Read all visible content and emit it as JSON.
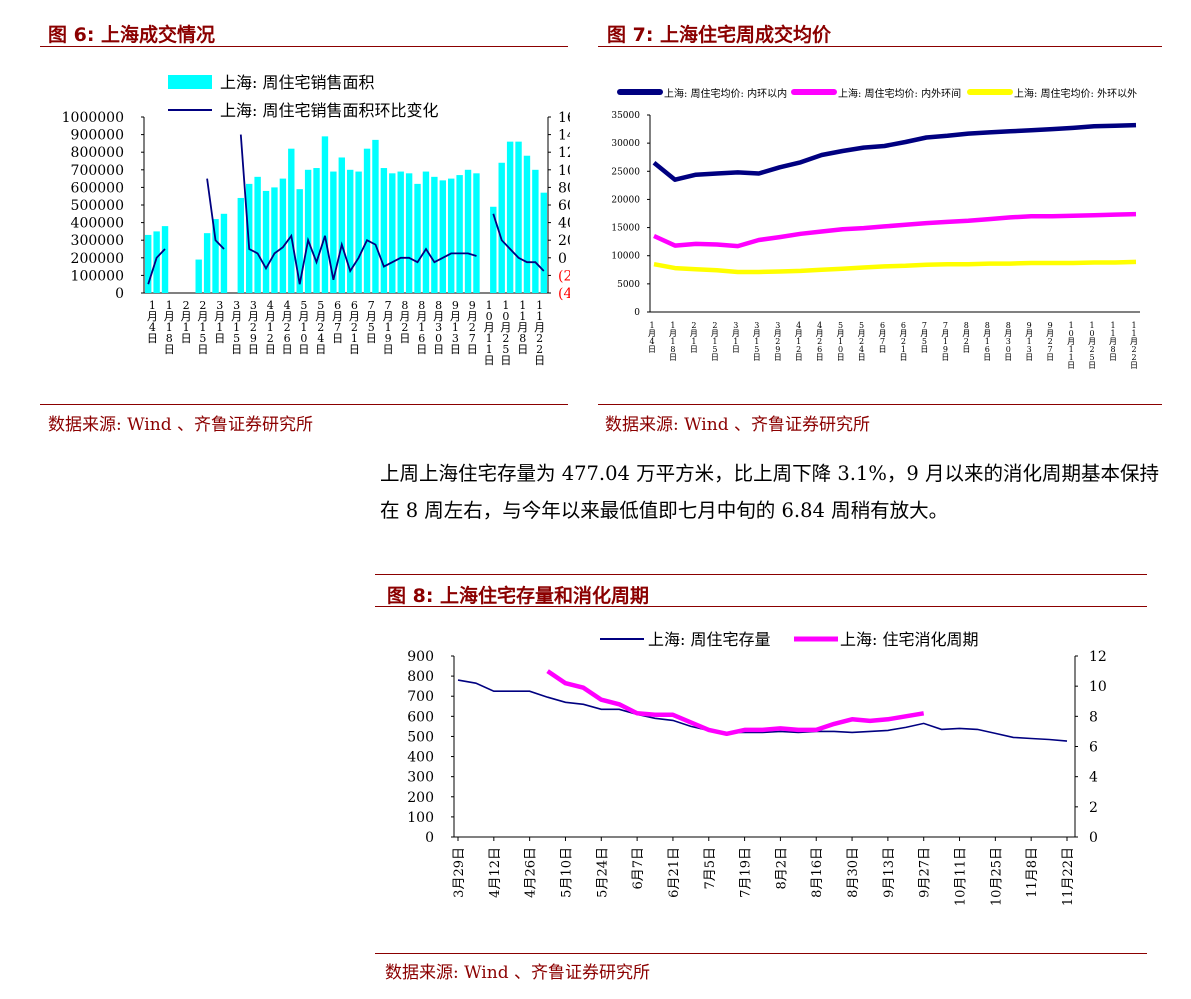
{
  "fig6": {
    "title": "图 6: 上海成交情况",
    "source": "数据来源: Wind 、齐鲁证券研究所",
    "chart_data": {
      "type": "bar",
      "legend": [
        "上海: 周住宅销售面积",
        "上海: 周住宅销售面积环比变化"
      ],
      "x_labels": [
        "1月4日",
        "1月18日",
        "2月1日",
        "2月15日",
        "3月1日",
        "3月15日",
        "3月29日",
        "4月12日",
        "4月26日",
        "5月10日",
        "5月24日",
        "6月7日",
        "6月21日",
        "7月5日",
        "7月19日",
        "8月2日",
        "8月16日",
        "8月30日",
        "9月13日",
        "9月27日",
        "10月11日",
        "10月25日",
        "11月8日",
        "11月22日"
      ],
      "y_left_ticks": [
        "1000000",
        "900000",
        "800000",
        "700000",
        "600000",
        "500000",
        "400000",
        "300000",
        "200000",
        "100000",
        "0"
      ],
      "y_right_ticks": [
        "160",
        "140",
        "120",
        "100",
        "80",
        "60",
        "40",
        "20",
        "0",
        "(20)",
        "(40)"
      ],
      "ylim_left": [
        0,
        1000000
      ],
      "ylim_right": [
        -40,
        160
      ],
      "series": [
        {
          "name": "上海: 周住宅销售面积",
          "kind": "bar",
          "values": [
            330000,
            350000,
            380000,
            null,
            null,
            null,
            190000,
            340000,
            420000,
            450000,
            null,
            540000,
            620000,
            660000,
            580000,
            600000,
            650000,
            820000,
            590000,
            700000,
            710000,
            890000,
            690000,
            770000,
            700000,
            690000,
            820000,
            870000,
            710000,
            680000,
            690000,
            680000,
            620000,
            690000,
            660000,
            640000,
            650000,
            670000,
            700000,
            680000,
            null,
            490000,
            740000,
            860000,
            860000,
            780000,
            700000,
            570000
          ]
        },
        {
          "name": "上海: 周住宅销售面积环比变化",
          "kind": "line",
          "values": [
            -30,
            0,
            10,
            null,
            null,
            null,
            null,
            90,
            20,
            10,
            null,
            140,
            10,
            5,
            -12,
            5,
            12,
            25,
            -30,
            20,
            -5,
            25,
            -25,
            15,
            -15,
            0,
            20,
            15,
            -10,
            -5,
            0,
            0,
            -5,
            10,
            -5,
            0,
            5,
            5,
            5,
            2,
            null,
            50,
            20,
            10,
            0,
            -5,
            -5,
            -15
          ]
        }
      ]
    }
  },
  "fig7": {
    "title": "图 7: 上海住宅周成交均价",
    "source": "数据来源: Wind 、齐鲁证券研究所",
    "chart_data": {
      "type": "line",
      "legend": [
        "上海: 周住宅均价: 内环以内",
        "上海: 周住宅均价: 内外环间",
        "上海: 周住宅均价: 外环以外"
      ],
      "x_labels": [
        "1月4日",
        "1月18日",
        "2月1日",
        "2月15日",
        "3月1日",
        "3月15日",
        "3月29日",
        "4月12日",
        "4月26日",
        "5月10日",
        "5月24日",
        "6月7日",
        "6月21日",
        "7月5日",
        "7月19日",
        "8月2日",
        "8月16日",
        "8月30日",
        "9月13日",
        "9月27日",
        "10月11日",
        "10月25日",
        "11月8日",
        "11月22日"
      ],
      "y_ticks": [
        "35000",
        "30000",
        "25000",
        "20000",
        "15000",
        "10000",
        "5000",
        "0"
      ],
      "ylim": [
        0,
        35000
      ],
      "colors": [
        "#000080",
        "#ff00ff",
        "#ffff00"
      ],
      "series": [
        {
          "name": "上海: 周住宅均价: 内环以内",
          "values": [
            26500,
            23500,
            24400,
            24600,
            24800,
            24600,
            25700,
            26600,
            27900,
            28600,
            29200,
            29500,
            30200,
            31000,
            31300,
            31700,
            31900,
            32100,
            32300,
            32500,
            32700,
            33000,
            33100,
            33200
          ]
        },
        {
          "name": "上海: 周住宅均价: 内外环间",
          "values": [
            13500,
            11800,
            12100,
            12000,
            11700,
            12800,
            13300,
            13900,
            14300,
            14700,
            14900,
            15200,
            15500,
            15800,
            16000,
            16200,
            16500,
            16800,
            17000,
            17000,
            17100,
            17200,
            17300,
            17400
          ]
        },
        {
          "name": "上海: 周住宅均价: 外环以外",
          "values": [
            8500,
            7800,
            7600,
            7400,
            7100,
            7100,
            7200,
            7300,
            7500,
            7700,
            7900,
            8100,
            8200,
            8400,
            8500,
            8500,
            8600,
            8600,
            8700,
            8700,
            8700,
            8800,
            8800,
            8900
          ]
        }
      ]
    }
  },
  "paragraph": "上周上海住宅存量为 477.04 万平方米，比上周下降 3.1%，9 月以来的消化周期基本保持在 8 周左右，与今年以来最低值即七月中旬的 6.84 周稍有放大。",
  "fig8": {
    "title": "图 8: 上海住宅存量和消化周期",
    "source": "数据来源: Wind 、齐鲁证券研究所",
    "chart_data": {
      "type": "line",
      "legend": [
        "上海: 周住宅存量",
        "上海: 住宅消化周期"
      ],
      "x_labels": [
        "3月29日",
        "4月12日",
        "4月26日",
        "5月10日",
        "5月24日",
        "6月7日",
        "6月21日",
        "7月5日",
        "7月19日",
        "8月2日",
        "8月16日",
        "8月30日",
        "9月13日",
        "9月27日",
        "10月11日",
        "10月25日",
        "11月8日",
        "11月22日"
      ],
      "y_left_ticks": [
        "900",
        "800",
        "700",
        "600",
        "500",
        "400",
        "300",
        "200",
        "100",
        "0"
      ],
      "y_right_ticks": [
        "12",
        "10",
        "8",
        "6",
        "4",
        "2",
        "0"
      ],
      "ylim_left": [
        0,
        900
      ],
      "ylim_right": [
        0,
        12
      ],
      "colors": [
        "#000080",
        "#ff00ff"
      ],
      "series": [
        {
          "name": "上海: 周住宅存量",
          "x": [
            0,
            0.5,
            1,
            1.5,
            2,
            2.5,
            3,
            3.5,
            4,
            4.5,
            5,
            5.5,
            6,
            6.5,
            7,
            7.5,
            8,
            8.5,
            9,
            9.5,
            10,
            10.5,
            11,
            11.5,
            12,
            12.5,
            13,
            13.5,
            14,
            14.5,
            15,
            15.5,
            16,
            16.5,
            17
          ],
          "values": [
            780,
            765,
            725,
            725,
            725,
            695,
            670,
            660,
            635,
            635,
            610,
            590,
            580,
            550,
            530,
            520,
            520,
            520,
            525,
            520,
            525,
            525,
            520,
            525,
            530,
            545,
            565,
            535,
            540,
            535,
            515,
            495,
            490,
            485,
            477
          ]
        },
        {
          "name": "上海: 住宅消化周期",
          "x": [
            2.5,
            3,
            3.5,
            4,
            4.5,
            5,
            5.5,
            6,
            6.5,
            7,
            7.5,
            8,
            8.5,
            9,
            9.5,
            10,
            10.5,
            11,
            11.5,
            12,
            12.5,
            13
          ],
          "values": [
            11,
            10.2,
            9.9,
            9.1,
            8.8,
            8.2,
            8.1,
            8.1,
            7.6,
            7.1,
            6.84,
            7.1,
            7.1,
            7.2,
            7.1,
            7.1,
            7.5,
            7.8,
            7.7,
            7.8,
            8.0,
            8.2
          ]
        }
      ]
    }
  }
}
